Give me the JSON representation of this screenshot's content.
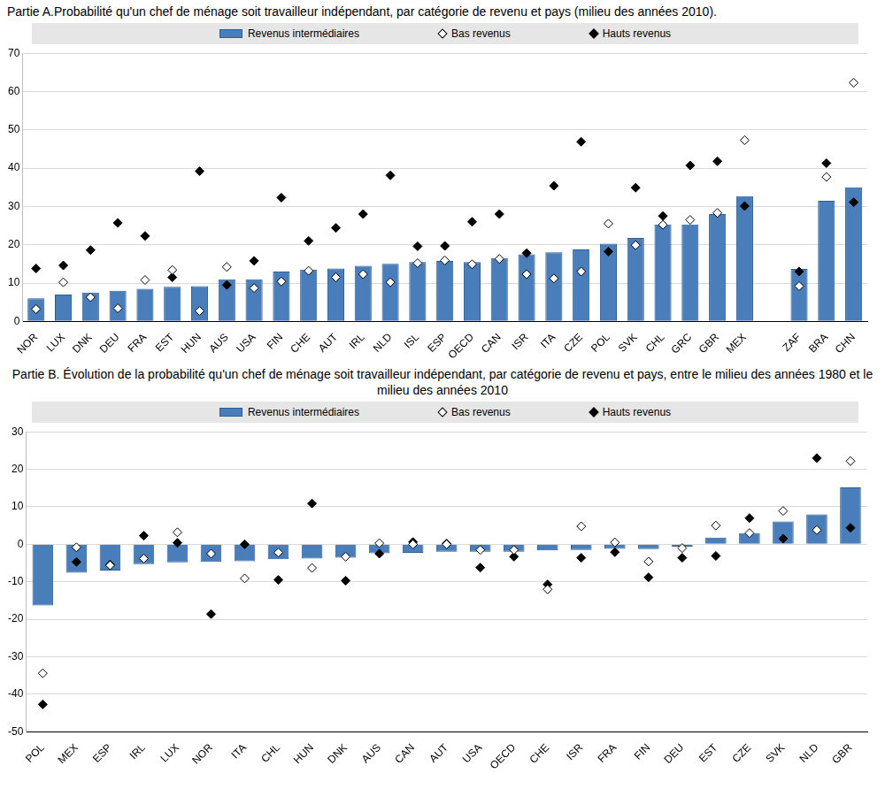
{
  "chart_data": [
    {
      "type": "bar",
      "title": "Partie A.Probabilité qu'un chef de ménage soit travailleur indépendant, par catégorie de revenu et pays (milieu des années 2010).",
      "categories": [
        "NOR",
        "LUX",
        "DNK",
        "DEU",
        "FRA",
        "EST",
        "HUN",
        "AUS",
        "USA",
        "FIN",
        "CHE",
        "AUT",
        "IRL",
        "NLD",
        "ISL",
        "ESP",
        "OECD",
        "CAN",
        "ISR",
        "ITA",
        "CZE",
        "POL",
        "SVK",
        "CHL",
        "GRC",
        "GBR",
        "MEX",
        null,
        "ZAF",
        "BRA",
        "CHN"
      ],
      "series": [
        {
          "name": "Revenus intermédiaires",
          "type": "bar",
          "color": "#4a7ebb",
          "values": [
            6,
            7,
            7.5,
            8,
            8.5,
            9,
            9.2,
            11,
            11,
            13,
            13.5,
            13.8,
            14.5,
            15,
            15.5,
            15.8,
            15.5,
            16.5,
            17.5,
            18,
            18.8,
            20.3,
            21.8,
            25.3,
            25.3,
            28,
            32.7,
            null,
            13.7,
            31.5,
            35
          ]
        },
        {
          "name": "Bas revenus",
          "type": "scatter",
          "marker": "diamond",
          "color": "#ffffff",
          "values": [
            3.2,
            10.2,
            6.3,
            3.4,
            10.8,
            13.4,
            2.7,
            14.2,
            8.7,
            10.4,
            13.2,
            11.5,
            12.3,
            10.2,
            15.2,
            15.9,
            14.9,
            16.3,
            12.3,
            11.2,
            13,
            25.5,
            19.9,
            25.2,
            26.5,
            28.3,
            47.3,
            null,
            9.2,
            37.7,
            62.3
          ]
        },
        {
          "name": "Hauts revenus",
          "type": "scatter",
          "marker": "diamond",
          "color": "#000000",
          "values": [
            13.8,
            14.6,
            18.6,
            25.7,
            22.3,
            11.5,
            39.2,
            9.5,
            15.8,
            32.3,
            21,
            24.4,
            28,
            38.1,
            19.6,
            19.7,
            26,
            28,
            17.8,
            35.4,
            46.9,
            18.2,
            34.9,
            27.5,
            40.7,
            41.8,
            30.1,
            null,
            13,
            41.3,
            31.1
          ]
        }
      ],
      "ylim": [
        0,
        70
      ],
      "yticks": [
        0,
        10,
        20,
        30,
        40,
        50,
        60,
        70
      ],
      "grid": true,
      "legend": "top"
    },
    {
      "type": "bar",
      "title": "Partie B. Évolution de la probabilité qu'un chef de ménage soit travailleur indépendant, par catégorie de revenu et pays, entre le milieu des années 1980 et le milieu des années 2010",
      "categories": [
        "POL",
        "MEX",
        "ESP",
        "IRL",
        "LUX",
        "NOR",
        "ITA",
        "CHL",
        "HUN",
        "DNK",
        "AUS",
        "CAN",
        "AUT",
        "USA",
        "OECD",
        "CHE",
        "ISR",
        "FRA",
        "FIN",
        "DEU",
        "EST",
        "CZE",
        "SVK",
        "NLD",
        "GBR"
      ],
      "series": [
        {
          "name": "Revenus intermédiaires",
          "type": "bar",
          "color": "#4a7ebb",
          "values": [
            -16.3,
            -7.6,
            -7,
            -5.3,
            -4.8,
            -4.7,
            -4.5,
            -4,
            -3.8,
            -3.6,
            -2.4,
            -2.3,
            -2,
            -2,
            -2,
            -1.6,
            -1.5,
            -1.2,
            -1.3,
            -0.6,
            1.8,
            3,
            6.1,
            8,
            15.2
          ]
        },
        {
          "name": "Bas revenus",
          "type": "scatter",
          "marker": "diamond",
          "color": "#ffffff",
          "values": [
            -34.4,
            -0.8,
            -5.6,
            -3.8,
            3.2,
            -2.5,
            -9.1,
            -2.2,
            -6.3,
            -3.3,
            0.3,
            0,
            0,
            -1.5,
            -1.5,
            -12,
            4.8,
            0.5,
            -4.6,
            -1,
            5,
            3,
            8.9,
            3.8,
            22.2
          ]
        },
        {
          "name": "Hauts revenus",
          "type": "scatter",
          "marker": "diamond",
          "color": "#000000",
          "values": [
            -42.7,
            -4.7,
            -5.4,
            2.3,
            0.4,
            -18.6,
            0,
            -9.5,
            10.9,
            -9.7,
            -2.5,
            0.6,
            0.2,
            -6.2,
            -3.3,
            -10.7,
            -3.6,
            -2.1,
            -8.8,
            -3.6,
            -3.1,
            7,
            1.5,
            23,
            4.4
          ]
        }
      ],
      "ylim": [
        -50,
        30
      ],
      "yticks": [
        -50,
        -40,
        -30,
        -20,
        -10,
        0,
        10,
        20,
        30
      ],
      "grid": true,
      "legend": "top"
    }
  ]
}
